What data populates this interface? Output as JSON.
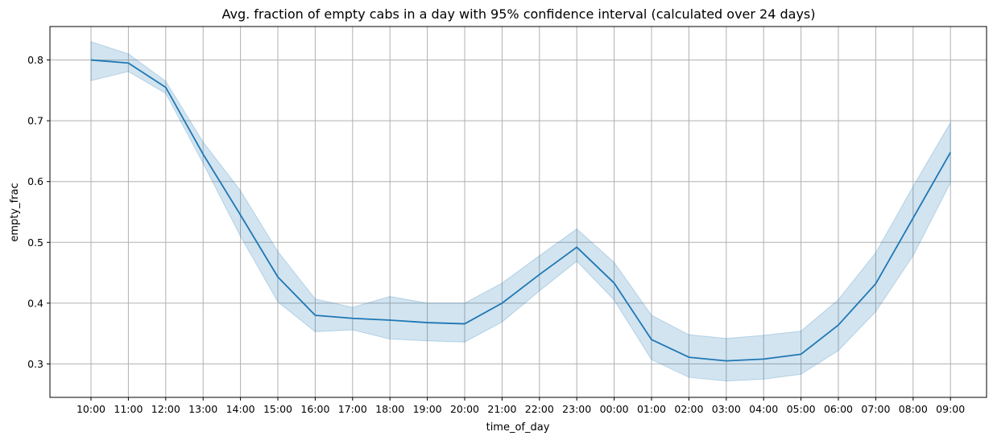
{
  "chart_data": {
    "type": "line",
    "title": "Avg. fraction of empty cabs in a day with 95% confidence interval (calculated over 24 days)",
    "xlabel": "time_of_day",
    "ylabel": "empty_frac",
    "categories": [
      "10:00",
      "11:00",
      "12:00",
      "13:00",
      "14:00",
      "15:00",
      "16:00",
      "17:00",
      "18:00",
      "19:00",
      "20:00",
      "21:00",
      "22:00",
      "23:00",
      "00:00",
      "01:00",
      "02:00",
      "03:00",
      "04:00",
      "05:00",
      "06:00",
      "07:00",
      "08:00",
      "09:00"
    ],
    "series": [
      {
        "values": [
          0.8,
          0.795,
          0.755,
          0.645,
          0.545,
          0.443,
          0.38,
          0.375,
          0.372,
          0.368,
          0.366,
          0.4,
          0.447,
          0.492,
          0.433,
          0.34,
          0.311,
          0.305,
          0.308,
          0.316,
          0.364,
          0.432,
          0.54,
          0.648
        ],
        "ci_lower": [
          0.766,
          0.781,
          0.745,
          0.63,
          0.51,
          0.402,
          0.353,
          0.356,
          0.341,
          0.338,
          0.336,
          0.369,
          0.42,
          0.469,
          0.405,
          0.307,
          0.278,
          0.272,
          0.275,
          0.283,
          0.322,
          0.386,
          0.478,
          0.598
        ],
        "ci_upper": [
          0.83,
          0.81,
          0.765,
          0.665,
          0.585,
          0.485,
          0.407,
          0.393,
          0.411,
          0.4,
          0.4,
          0.433,
          0.478,
          0.522,
          0.467,
          0.38,
          0.348,
          0.342,
          0.347,
          0.354,
          0.406,
          0.483,
          0.592,
          0.697
        ]
      }
    ],
    "ylim": [
      0.245,
      0.855
    ],
    "yticks": [
      "0.3",
      "0.4",
      "0.5",
      "0.6",
      "0.7",
      "0.8"
    ],
    "grid": true,
    "colors": {
      "line": "#1f77b4",
      "band": "#1f77b4",
      "grid": "#b0b0b0"
    }
  }
}
